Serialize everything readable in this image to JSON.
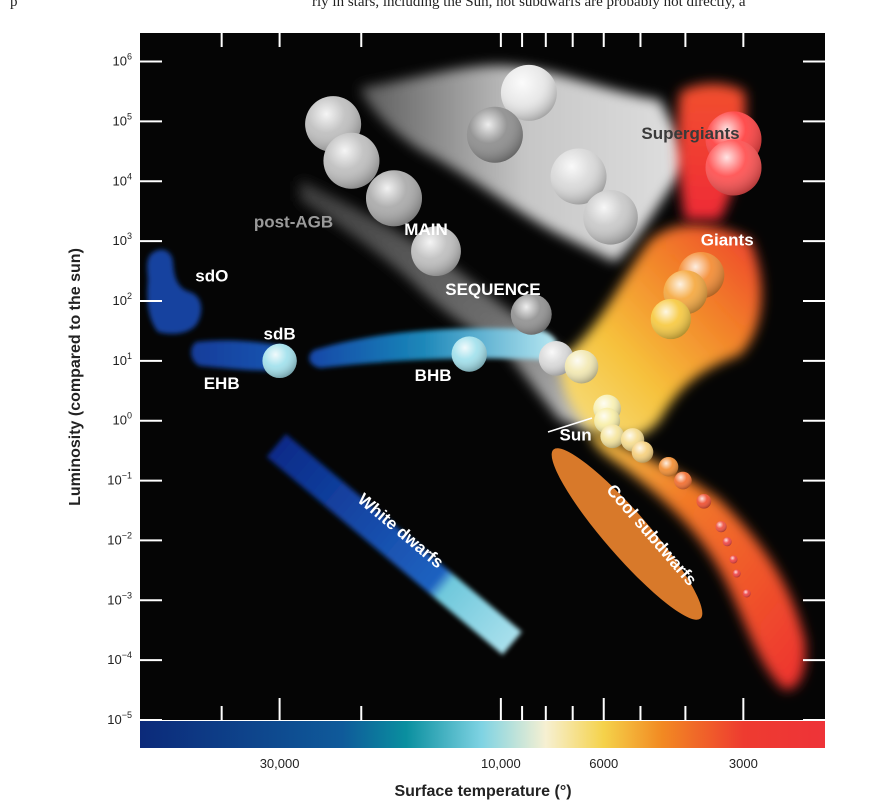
{
  "page": {
    "intro_left": "p",
    "intro_right": "rly in stars, including the Sun, hot subdwarfs are probably not directly, a"
  },
  "chart_data": {
    "type": "scatter",
    "title": "",
    "xlabel": "Surface temperature (°)",
    "ylabel": "Luminosity (compared to the sun)",
    "x_scale": "log (reversed, hot to cool)",
    "x_range": [
      60000,
      2000
    ],
    "x_ticks": [
      {
        "value": 30000,
        "label": "30,000"
      },
      {
        "value": 10000,
        "label": "10,000"
      },
      {
        "value": 6000,
        "label": "6000"
      },
      {
        "value": 3000,
        "label": "3000"
      }
    ],
    "y_scale": "log",
    "y_range": [
      1e-05,
      3000000
    ],
    "y_ticks": [
      {
        "exp": "6"
      },
      {
        "exp": "5"
      },
      {
        "exp": "4"
      },
      {
        "exp": "3"
      },
      {
        "exp": "2"
      },
      {
        "exp": "1"
      },
      {
        "exp": "0"
      },
      {
        "exp": "−1"
      },
      {
        "exp": "−2"
      },
      {
        "exp": "−3"
      },
      {
        "exp": "−4"
      },
      {
        "exp": "−5"
      }
    ],
    "tick_base": "10",
    "grid": false,
    "background": "#050505",
    "colorbar": {
      "stops": [
        {
          "temp": 60000,
          "color": "#0c2a7a"
        },
        {
          "temp": 22000,
          "color": "#0f5a9a"
        },
        {
          "temp": 16000,
          "color": "#0a8f9f"
        },
        {
          "temp": 11000,
          "color": "#7fd3e3"
        },
        {
          "temp": 8000,
          "color": "#f6f0d2"
        },
        {
          "temp": 6000,
          "color": "#f5d24a"
        },
        {
          "temp": 4500,
          "color": "#f28a22"
        },
        {
          "temp": 3000,
          "color": "#ee3b30"
        },
        {
          "temp": 2000,
          "color": "#ee3338"
        }
      ]
    },
    "region_labels": [
      {
        "text": "Supergiants",
        "temp": 3900,
        "lum": 60000,
        "color": "#3a3a3a"
      },
      {
        "text": "Giants",
        "temp": 3250,
        "lum": 1000,
        "color": "#ffffff"
      },
      {
        "text": "post-AGB",
        "temp": 28000,
        "lum": 2000,
        "color": "#9a9a9a"
      },
      {
        "text": "MAIN",
        "temp": 14500,
        "lum": 1500,
        "color": "#ffffff"
      },
      {
        "text": "SEQUENCE",
        "temp": 10400,
        "lum": 150,
        "color": "#ffffff"
      },
      {
        "text": "sdO",
        "temp": 42000,
        "lum": 250,
        "color": "#ffffff"
      },
      {
        "text": "sdB",
        "temp": 30000,
        "lum": 27,
        "color": "#ffffff"
      },
      {
        "text": "EHB",
        "temp": 40000,
        "lum": 4,
        "color": "#ffffff"
      },
      {
        "text": "BHB",
        "temp": 14000,
        "lum": 5.5,
        "color": "#ffffff"
      },
      {
        "text": "Sun",
        "temp": 6900,
        "lum": 0.55,
        "color": "#ffffff"
      },
      {
        "text": "White dwarfs",
        "temp": 16500,
        "lum": 0.014,
        "color": "#ffffff"
      },
      {
        "text": "Cool subdwarfs",
        "temp": 4750,
        "lum": 0.012,
        "color": "#ffffff"
      }
    ],
    "stars": [
      {
        "temp": 8700,
        "lum": 300000,
        "color": "#e8e8e8"
      },
      {
        "temp": 10300,
        "lum": 60000,
        "color": "#8a8a8a"
      },
      {
        "temp": 6800,
        "lum": 12000,
        "color": "#d8d8d8"
      },
      {
        "temp": 5800,
        "lum": 2500,
        "color": "#c8c8c8"
      },
      {
        "temp": 3150,
        "lum": 50000,
        "color": "#ff3b3b"
      },
      {
        "temp": 3150,
        "lum": 17000,
        "color": "#ff4a4a"
      },
      {
        "temp": 23000,
        "lum": 90000,
        "color": "#bdbdbd"
      },
      {
        "temp": 21000,
        "lum": 22000,
        "color": "#bdbdbd"
      },
      {
        "temp": 17000,
        "lum": 5200,
        "color": "#a8a8a8"
      },
      {
        "temp": 13800,
        "lum": 680,
        "color": "#bdbdbd"
      },
      {
        "temp": 8600,
        "lum": 60,
        "color": "#8f8f8f"
      },
      {
        "temp": 7600,
        "lum": 11,
        "color": "#d8d8d8"
      },
      {
        "temp": 6700,
        "lum": 8,
        "color": "#f2e8b0"
      },
      {
        "temp": 11700,
        "lum": 13,
        "color": "#9fe0ec"
      },
      {
        "temp": 30000,
        "lum": 10,
        "color": "#9fe0ec"
      },
      {
        "temp": 3700,
        "lum": 270,
        "color": "#f4882c"
      },
      {
        "temp": 4000,
        "lum": 140,
        "color": "#f5a63a"
      },
      {
        "temp": 4300,
        "lum": 50,
        "color": "#f7c83c"
      },
      {
        "temp": 5900,
        "lum": 1.6,
        "color": "#f8f0b0"
      },
      {
        "temp": 5900,
        "lum": 1.0,
        "color": "#f8eea5"
      },
      {
        "temp": 5750,
        "lum": 0.55,
        "color": "#f5e49a"
      },
      {
        "temp": 5200,
        "lum": 0.48,
        "color": "#f6dc8c"
      },
      {
        "temp": 4950,
        "lum": 0.3,
        "color": "#f6cf7a"
      },
      {
        "temp": 4350,
        "lum": 0.17,
        "color": "#f28a2c"
      },
      {
        "temp": 4050,
        "lum": 0.1,
        "color": "#f26a2a"
      },
      {
        "temp": 3650,
        "lum": 0.045,
        "color": "#ee4a2a"
      },
      {
        "temp": 3350,
        "lum": 0.017,
        "color": "#ee4a3a"
      },
      {
        "temp": 3250,
        "lum": 0.0095,
        "color": "#ee4040"
      },
      {
        "temp": 3150,
        "lum": 0.0048,
        "color": "#ee3a3a"
      },
      {
        "temp": 3100,
        "lum": 0.0028,
        "color": "#ee3a3a"
      },
      {
        "temp": 2950,
        "lum": 0.0013,
        "color": "#ee3a3a"
      }
    ]
  }
}
